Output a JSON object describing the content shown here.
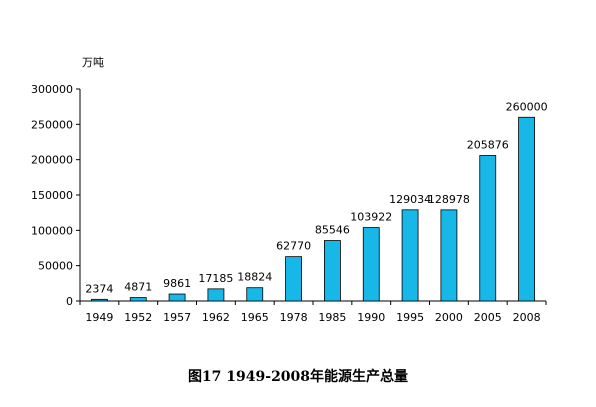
{
  "chart_data": {
    "type": "bar",
    "title": "图17  1949-2008年能源生产总量",
    "unit_label": "万吨",
    "categories": [
      "1949",
      "1952",
      "1957",
      "1962",
      "1965",
      "1978",
      "1985",
      "1990",
      "1995",
      "2000",
      "2005",
      "2008"
    ],
    "values": [
      2374,
      4871,
      9861,
      17185,
      18824,
      62770,
      85546,
      103922,
      129034,
      128978,
      205876,
      260000
    ],
    "data_labels": [
      "2374",
      "4871",
      "9861",
      "17185",
      "18824",
      "62770",
      "85546",
      "103922",
      "129034",
      "128978",
      "205876",
      "260000"
    ],
    "y_ticks": [
      0,
      50000,
      100000,
      150000,
      200000,
      250000,
      300000
    ],
    "ylim": [
      0,
      300000
    ],
    "grid": false,
    "legend": "none",
    "bar_color": "#17b8e8"
  }
}
